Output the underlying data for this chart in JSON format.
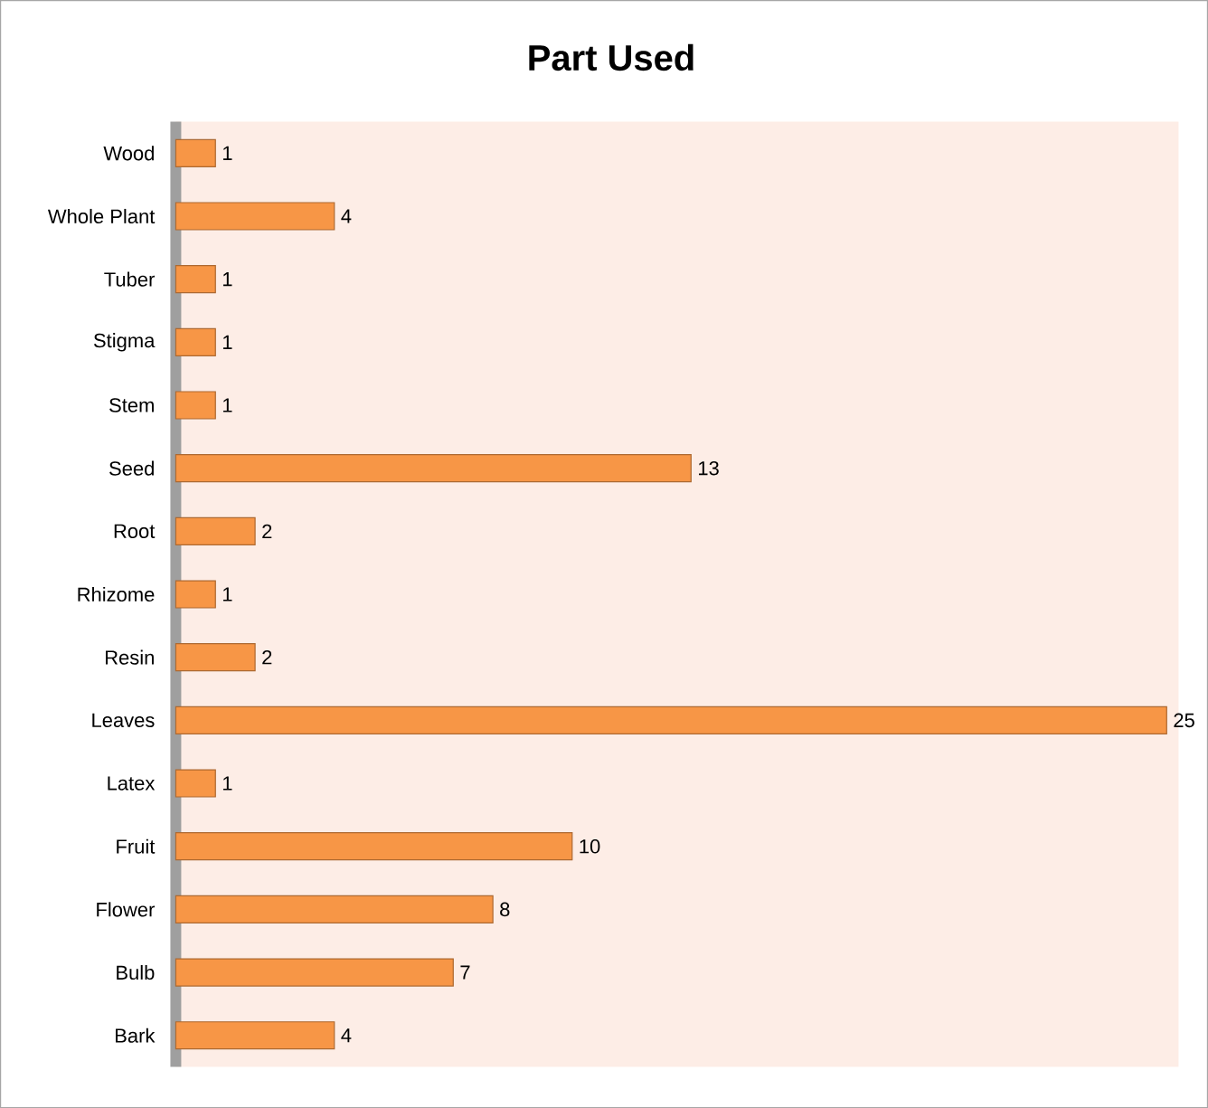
{
  "chart_data": {
    "type": "bar",
    "orientation": "horizontal",
    "title": "Part Used",
    "categories": [
      "Wood",
      "Whole Plant",
      "Tuber",
      "Stigma",
      "Stem",
      "Seed",
      "Root",
      "Rhizome",
      "Resin",
      "Leaves",
      "Latex",
      "Fruit",
      "Flower",
      "Bulb",
      "Bark"
    ],
    "values": [
      1,
      4,
      1,
      1,
      1,
      13,
      2,
      1,
      2,
      25,
      1,
      10,
      8,
      7,
      4
    ],
    "color": "#f79646",
    "data_labels": true,
    "tick_labels": "y"
  }
}
